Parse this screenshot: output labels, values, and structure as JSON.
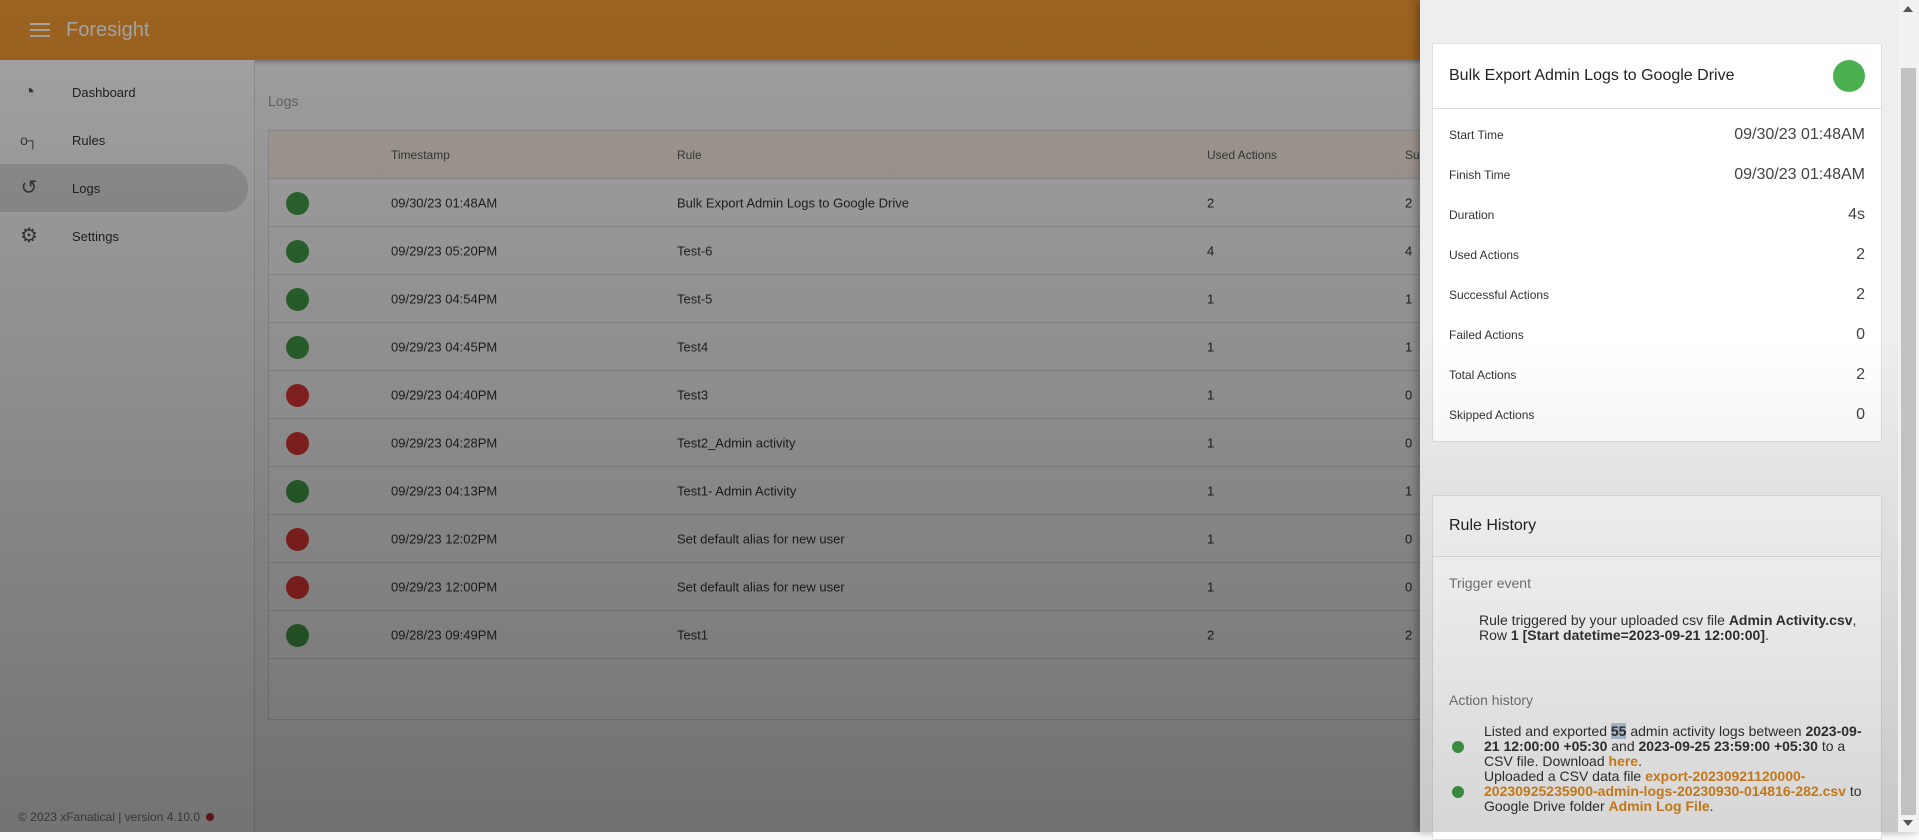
{
  "app": {
    "title": "Foresight",
    "brand_color": "#f39a33"
  },
  "sidebar": {
    "items": [
      {
        "label": "Dashboard",
        "icon": "gauge-icon"
      },
      {
        "label": "Rules",
        "icon": "rules-icon"
      },
      {
        "label": "Logs",
        "icon": "history-icon",
        "active": true
      },
      {
        "label": "Settings",
        "icon": "gear-icon"
      }
    ],
    "footer": "© 2023 xFanatical | version 4.10.0"
  },
  "main": {
    "title": "Logs",
    "columns": [
      "Timestamp",
      "Rule",
      "Used Actions",
      "Su"
    ],
    "rows": [
      {
        "status": "success",
        "timestamp": "09/30/23 01:48AM",
        "rule": "Bulk Export Admin Logs to Google Drive",
        "used": "2",
        "successful": "2"
      },
      {
        "status": "success",
        "timestamp": "09/29/23 05:20PM",
        "rule": "Test-6",
        "used": "4",
        "successful": "4"
      },
      {
        "status": "success",
        "timestamp": "09/29/23 04:54PM",
        "rule": "Test-5",
        "used": "1",
        "successful": "1"
      },
      {
        "status": "success",
        "timestamp": "09/29/23 04:45PM",
        "rule": "Test4",
        "used": "1",
        "successful": "1"
      },
      {
        "status": "failed",
        "timestamp": "09/29/23 04:40PM",
        "rule": "Test3",
        "used": "1",
        "successful": "0"
      },
      {
        "status": "failed",
        "timestamp": "09/29/23 04:28PM",
        "rule": "Test2_Admin activity",
        "used": "1",
        "successful": "0"
      },
      {
        "status": "success",
        "timestamp": "09/29/23 04:13PM",
        "rule": "Test1- Admin Activity",
        "used": "1",
        "successful": "1"
      },
      {
        "status": "failed",
        "timestamp": "09/29/23 12:02PM",
        "rule": "Set default alias for new user",
        "used": "1",
        "successful": "0"
      },
      {
        "status": "failed",
        "timestamp": "09/29/23 12:00PM",
        "rule": "Set default alias for new user",
        "used": "1",
        "successful": "0"
      },
      {
        "status": "success",
        "timestamp": "09/28/23 09:49PM",
        "rule": "Test1",
        "used": "2",
        "successful": "2"
      }
    ],
    "status_colors": {
      "success": "#43a047",
      "failed": "#e53935"
    }
  },
  "detail": {
    "title": "Bulk Export Admin Logs to Google Drive",
    "status": "success",
    "fields": [
      {
        "label": "Start Time",
        "value": "09/30/23 01:48AM"
      },
      {
        "label": "Finish Time",
        "value": "09/30/23 01:48AM"
      },
      {
        "label": "Duration",
        "value": "4s"
      },
      {
        "label": "Used Actions",
        "value": "2"
      },
      {
        "label": "Successful Actions",
        "value": "2"
      },
      {
        "label": "Failed Actions",
        "value": "0"
      },
      {
        "label": "Total Actions",
        "value": "2"
      },
      {
        "label": "Skipped Actions",
        "value": "0"
      }
    ]
  },
  "history": {
    "title": "Rule History",
    "trigger_label": "Trigger event",
    "trigger": {
      "t1": "Rule triggered by your uploaded csv file ",
      "file": "Admin Activity.csv",
      "t2": ", Row ",
      "row": "1",
      "t3": " ",
      "detail": "[Start datetime=2023-09-21 12:00:00]",
      "t4": "."
    },
    "action_label": "Action history",
    "action1": {
      "t1": "Listed and exported ",
      "count": "55",
      "t2": " admin activity logs between ",
      "from": "2023-09-21 12:00:00 +05:30",
      "t3": " and ",
      "to": "2023-09-25 23:59:00 +05:30",
      "t4": " to a CSV file. Download ",
      "link": "here",
      "t5": "."
    },
    "action2": {
      "t1": "Uploaded a CSV data file ",
      "file": "export-20230921120000-20230925235900-admin-logs-20230930-014816-282.csv",
      "t2": " to Google Drive folder ",
      "folder": "Admin Log File",
      "t3": "."
    }
  }
}
